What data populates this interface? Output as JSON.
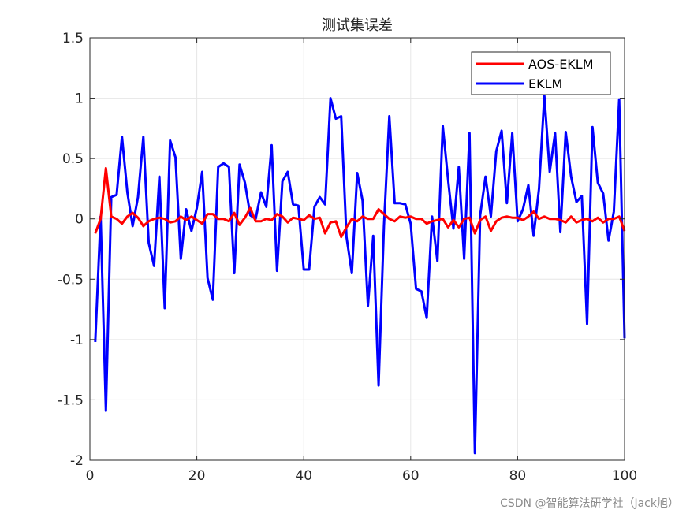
{
  "chart_data": {
    "type": "line",
    "title": "测试集误差",
    "xlabel": "",
    "ylabel": "",
    "xlim": [
      0,
      100
    ],
    "ylim": [
      -2,
      1.5
    ],
    "xticks": [
      0,
      20,
      40,
      60,
      80,
      100
    ],
    "yticks": [
      -2,
      -1.5,
      -1,
      -0.5,
      0,
      0.5,
      1,
      1.5
    ],
    "grid": true,
    "legend_position": "top-right",
    "x": [
      1,
      2,
      3,
      4,
      5,
      6,
      7,
      8,
      9,
      10,
      11,
      12,
      13,
      14,
      15,
      16,
      17,
      18,
      19,
      20,
      21,
      22,
      23,
      24,
      25,
      26,
      27,
      28,
      29,
      30,
      31,
      32,
      33,
      34,
      35,
      36,
      37,
      38,
      39,
      40,
      41,
      42,
      43,
      44,
      45,
      46,
      47,
      48,
      49,
      50,
      51,
      52,
      53,
      54,
      55,
      56,
      57,
      58,
      59,
      60,
      61,
      62,
      63,
      64,
      65,
      66,
      67,
      68,
      69,
      70,
      71,
      72,
      73,
      74,
      75,
      76,
      77,
      78,
      79,
      80,
      81,
      82,
      83,
      84,
      85,
      86,
      87,
      88,
      89,
      90,
      91,
      92,
      93,
      94,
      95,
      96,
      97,
      98,
      99,
      100
    ],
    "series": [
      {
        "name": "AOS-EKLM",
        "color": "#ff0000",
        "values": [
          -0.12,
          0.0,
          0.42,
          0.02,
          0.0,
          -0.04,
          0.02,
          0.05,
          0.01,
          -0.06,
          -0.02,
          0.0,
          0.01,
          0.0,
          -0.03,
          -0.02,
          0.02,
          -0.01,
          0.02,
          -0.01,
          -0.04,
          0.04,
          0.04,
          0.0,
          0.0,
          -0.02,
          0.05,
          -0.05,
          0.01,
          0.09,
          -0.02,
          -0.02,
          0.0,
          -0.01,
          0.04,
          0.02,
          -0.03,
          0.01,
          0.0,
          -0.01,
          0.03,
          0.0,
          0.01,
          -0.12,
          -0.03,
          -0.02,
          -0.15,
          -0.07,
          0.0,
          -0.02,
          0.02,
          0.0,
          0.0,
          0.08,
          0.04,
          0.0,
          -0.02,
          0.02,
          0.01,
          0.02,
          0.0,
          0.0,
          -0.04,
          -0.02,
          -0.01,
          0.0,
          -0.07,
          -0.01,
          -0.07,
          0.0,
          0.01,
          -0.12,
          -0.01,
          0.02,
          -0.1,
          -0.02,
          0.01,
          0.02,
          0.01,
          0.01,
          -0.01,
          0.02,
          0.06,
          0.0,
          0.02,
          0.0,
          0.0,
          -0.01,
          -0.03,
          0.02,
          -0.03,
          -0.01,
          0.0,
          -0.02,
          0.01,
          -0.03,
          0.0,
          0.0,
          0.02,
          -0.1
        ]
      },
      {
        "name": "EKLM",
        "color": "#0000ff",
        "values": [
          -1.02,
          0.02,
          -1.59,
          0.18,
          0.2,
          0.68,
          0.22,
          -0.06,
          0.18,
          0.68,
          -0.2,
          -0.39,
          0.35,
          -0.74,
          0.65,
          0.51,
          -0.33,
          0.08,
          -0.1,
          0.09,
          0.39,
          -0.49,
          -0.67,
          0.43,
          0.46,
          0.43,
          -0.45,
          0.45,
          0.3,
          0.03,
          0.0,
          0.22,
          0.1,
          0.61,
          -0.43,
          0.31,
          0.39,
          0.12,
          0.11,
          -0.42,
          -0.42,
          0.1,
          0.18,
          0.12,
          1.0,
          0.83,
          0.85,
          -0.15,
          -0.45,
          0.38,
          0.15,
          -0.72,
          -0.14,
          -1.38,
          -0.06,
          0.85,
          0.13,
          0.13,
          0.12,
          -0.04,
          -0.58,
          -0.6,
          -0.82,
          0.02,
          -0.35,
          0.77,
          0.32,
          -0.08,
          0.43,
          -0.33,
          0.71,
          -1.94,
          0.03,
          0.35,
          0.02,
          0.56,
          0.73,
          0.13,
          0.71,
          -0.02,
          0.08,
          0.28,
          -0.14,
          0.25,
          1.02,
          0.39,
          0.71,
          -0.11,
          0.72,
          0.35,
          0.14,
          0.19,
          -0.87,
          0.76,
          0.3,
          0.21,
          -0.18,
          0.06,
          0.99,
          -0.99
        ]
      }
    ]
  },
  "watermark": "CSDN @智能算法研学社（Jack旭）"
}
